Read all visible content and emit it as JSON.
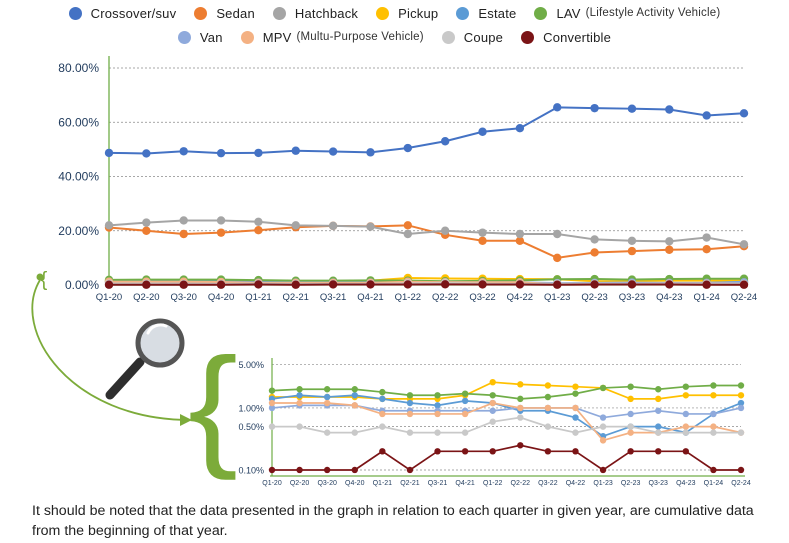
{
  "legend_rows": [
    [
      {
        "name": "Crossover/suv",
        "note": "",
        "color": "#4472C4"
      },
      {
        "name": "Sedan",
        "note": "",
        "color": "#ED7D31"
      },
      {
        "name": "Hatchback",
        "note": "",
        "color": "#A5A5A5"
      },
      {
        "name": "Pickup",
        "note": "",
        "color": "#FFC000"
      },
      {
        "name": "Estate",
        "note": "",
        "color": "#5B9BD5"
      },
      {
        "name": "LAV",
        "note": "(Lifestyle Activity Vehicle)",
        "color": "#70AD47"
      }
    ],
    [
      {
        "name": "Van",
        "note": "",
        "color": "#8FAADC"
      },
      {
        "name": "MPV",
        "note": "(Multu-Purpose Vehicle)",
        "color": "#F4B183"
      },
      {
        "name": "Coupe",
        "note": "",
        "color": "#C9C9C9"
      },
      {
        "name": "Convertible",
        "note": "",
        "color": "#7B1416"
      }
    ]
  ],
  "note": "It should be noted that the data presented in the graph in relation to each quarter in given year, are cumulative data from the beginning of that year.",
  "zoom_marker": "{",
  "chart_data": [
    {
      "type": "line",
      "x": [
        "Q1-20",
        "Q2-20",
        "Q3-20",
        "Q4-20",
        "Q1-21",
        "Q2-21",
        "Q3-21",
        "Q4-21",
        "Q1-22",
        "Q2-22",
        "Q3-22",
        "Q4-22",
        "Q1-23",
        "Q2-23",
        "Q3-23",
        "Q4-23",
        "Q1-24",
        "Q2-24"
      ],
      "ylim": [
        0,
        80
      ],
      "yticks": [
        "0.00%",
        "20.00%",
        "40.00%",
        "60.00%",
        "80.00%"
      ],
      "grid": true,
      "series": [
        {
          "name": "Crossover/suv",
          "color": "#4472C4",
          "values": [
            48.7,
            48.5,
            49.3,
            48.6,
            48.7,
            49.5,
            49.2,
            48.9,
            50.5,
            53,
            56.5,
            57.8,
            65.5,
            65.2,
            65,
            64.7,
            62.5,
            63.3
          ]
        },
        {
          "name": "Sedan",
          "color": "#ED7D31",
          "values": [
            21.2,
            20,
            18.8,
            19.3,
            20.2,
            21.3,
            21.8,
            21.6,
            22,
            18.5,
            16.3,
            16.3,
            10,
            12,
            12.5,
            13,
            13.2,
            14.3
          ]
        },
        {
          "name": "Hatchback",
          "color": "#A5A5A5",
          "values": [
            22,
            23,
            23.8,
            23.8,
            23.3,
            22,
            21.8,
            21.5,
            18.8,
            20,
            19.3,
            18.8,
            18.8,
            16.8,
            16.3,
            16.1,
            17.5,
            15
          ]
        },
        {
          "name": "Pickup",
          "color": "#FFC000",
          "values": [
            1.5,
            1.5,
            1.5,
            1.5,
            1.4,
            1.4,
            1.4,
            1.6,
            2.6,
            2.4,
            2.3,
            2.2,
            2.1,
            1.4,
            1.4,
            1.6,
            1.6,
            1.6
          ]
        },
        {
          "name": "Estate",
          "color": "#5B9BD5",
          "values": [
            1.4,
            1.6,
            1.5,
            1.6,
            1.4,
            1.2,
            1.1,
            1.3,
            1.2,
            0.9,
            0.9,
            0.7,
            0.35,
            0.5,
            0.5,
            0.4,
            0.8,
            1.2
          ]
        },
        {
          "name": "LAV",
          "color": "#70AD47",
          "values": [
            1.9,
            2,
            2,
            2,
            1.8,
            1.6,
            1.6,
            1.7,
            1.6,
            1.4,
            1.5,
            1.7,
            2.1,
            2.2,
            2.0,
            2.2,
            2.3,
            2.3
          ]
        },
        {
          "name": "Van",
          "color": "#8FAADC",
          "values": [
            1,
            1.1,
            1.1,
            1.1,
            0.9,
            0.9,
            0.9,
            0.9,
            0.9,
            1,
            1,
            1,
            0.7,
            0.8,
            0.9,
            0.8,
            0.8,
            1
          ]
        },
        {
          "name": "MPV",
          "color": "#F4B183",
          "values": [
            1.2,
            1.2,
            1.2,
            1.1,
            0.8,
            0.8,
            0.8,
            0.8,
            1.2,
            1,
            1,
            1,
            0.3,
            0.4,
            0.4,
            0.5,
            0.5,
            0.4
          ]
        },
        {
          "name": "Coupe",
          "color": "#C9C9C9",
          "values": [
            0.5,
            0.5,
            0.4,
            0.4,
            0.5,
            0.4,
            0.4,
            0.4,
            0.6,
            0.7,
            0.5,
            0.4,
            0.5,
            0.5,
            0.4,
            0.4,
            0.4,
            0.4
          ]
        },
        {
          "name": "Convertible",
          "color": "#7B1416",
          "values": [
            0.1,
            0.1,
            0.1,
            0.1,
            0.2,
            0.1,
            0.2,
            0.2,
            0.2,
            0.25,
            0.2,
            0.2,
            0.1,
            0.2,
            0.2,
            0.2,
            0.1,
            0.1
          ]
        }
      ]
    },
    {
      "type": "line",
      "x": [
        "Q1-20",
        "Q2-20",
        "Q3-20",
        "Q4-20",
        "Q1-21",
        "Q2-21",
        "Q3-21",
        "Q4-21",
        "Q1-22",
        "Q2-22",
        "Q3-22",
        "Q4-22",
        "Q1-23",
        "Q2-23",
        "Q3-23",
        "Q4-23",
        "Q1-24",
        "Q2-24"
      ],
      "ylim": [
        0.08,
        5.5
      ],
      "yscale": "log",
      "yticks": [
        {
          "v": 0.1,
          "label": "0.10%"
        },
        {
          "v": 0.5,
          "label": "0.50%"
        },
        {
          "v": 1,
          "label": "1.00%"
        },
        {
          "v": 5,
          "label": "5.00%"
        }
      ],
      "grid": true,
      "series_from": "chart 1 (Pickup, Estate, LAV, Van, MPV, Coupe, Convertible)"
    }
  ]
}
